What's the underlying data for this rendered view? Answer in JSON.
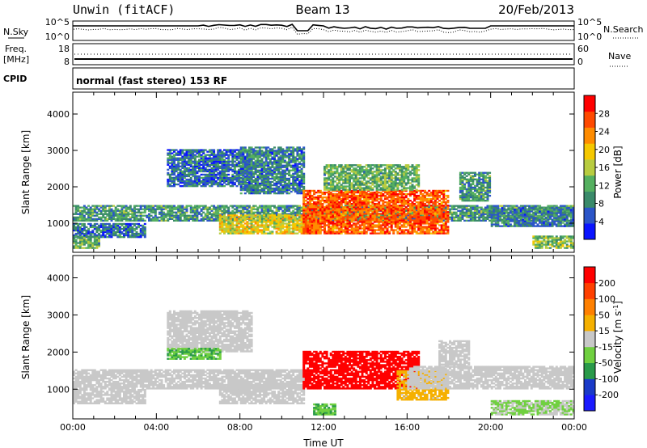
{
  "header": {
    "radar": "Unwin (fitACF)",
    "beam": "Beam 13",
    "date": "20/Feb/2013"
  },
  "noise_panel": {
    "left_label": "N.Sky",
    "left_ticks": [
      "10^5",
      "10^0"
    ],
    "right_ticks": [
      "10^5",
      "10^0"
    ],
    "right_label": "N.Search"
  },
  "freq_panel": {
    "left_label_1": "Freq.",
    "left_label_2": "[MHz]",
    "left_ticks": [
      "18",
      "8"
    ],
    "right_ticks": [
      "60",
      "0"
    ],
    "right_label": "Nave"
  },
  "cpid_panel": {
    "label": "CPID",
    "text": "normal (fast stereo) 153 RF"
  },
  "colors": {
    "power_scale": [
      "#0a14ff",
      "#2b55c8",
      "#3a8a6a",
      "#55b060",
      "#b8cc40",
      "#f5c800",
      "#ff8c00",
      "#ff4a00",
      "#ff0000"
    ],
    "velocity_scale": [
      "#1a1aff",
      "#1a3ac8",
      "#2a9a4a",
      "#70d040",
      "#c8c8c8",
      "#f5b000",
      "#ff8000",
      "#ff4000",
      "#ff0000"
    ]
  },
  "chart_data": [
    {
      "type": "heatmap",
      "name": "power",
      "xlabel": "",
      "ylabel": "Slant Range [km]",
      "ylim": [
        200,
        4600
      ],
      "xlim": [
        0,
        24
      ],
      "yticks": [
        1000,
        2000,
        3000,
        4000
      ],
      "colorbar": {
        "label": "Power [dB]",
        "ticks": [
          "28",
          "24",
          "20",
          "16",
          "12",
          "8",
          "4"
        ],
        "range": [
          0,
          32
        ]
      },
      "regions": [
        {
          "t0": 0.0,
          "t1": 24.0,
          "r0": 1050,
          "r1": 1500,
          "level": 10
        },
        {
          "t0": 0.0,
          "t1": 3.5,
          "r0": 600,
          "r1": 1000,
          "level": 7
        },
        {
          "t0": 0.0,
          "t1": 1.3,
          "r0": 300,
          "r1": 650,
          "level": 12
        },
        {
          "t0": 4.5,
          "t1": 8.5,
          "r0": 2000,
          "r1": 3000,
          "level": 7
        },
        {
          "t0": 8.0,
          "t1": 11.0,
          "r0": 1800,
          "r1": 3100,
          "level": 8
        },
        {
          "t0": 7.0,
          "t1": 11.5,
          "r0": 700,
          "r1": 1200,
          "level": 18
        },
        {
          "t0": 11.0,
          "t1": 18.0,
          "r0": 700,
          "r1": 1900,
          "level": 26
        },
        {
          "t0": 12.0,
          "t1": 16.5,
          "r0": 1900,
          "r1": 2600,
          "level": 12
        },
        {
          "t0": 18.5,
          "t1": 20.0,
          "r0": 1600,
          "r1": 2400,
          "level": 10
        },
        {
          "t0": 20.0,
          "t1": 24.0,
          "r0": 900,
          "r1": 1400,
          "level": 8
        },
        {
          "t0": 22.0,
          "t1": 24.0,
          "r0": 300,
          "r1": 650,
          "level": 14
        }
      ]
    },
    {
      "type": "heatmap",
      "name": "velocity",
      "xlabel": "Time UT",
      "ylabel": "Slant Range [km]",
      "ylim": [
        200,
        4600
      ],
      "xlim": [
        0,
        24
      ],
      "xticks": [
        "00:00",
        "04:00",
        "08:00",
        "12:00",
        "16:00",
        "20:00",
        "00:00"
      ],
      "yticks": [
        1000,
        2000,
        3000,
        4000
      ],
      "colorbar": {
        "label": "Velocity [m s^-1]",
        "ticks": [
          "200",
          "100",
          "50",
          "15",
          "-15",
          "-50",
          "-100",
          "-200"
        ],
        "range": [
          -250,
          250
        ]
      },
      "regions": [
        {
          "t0": 0.0,
          "t1": 11.0,
          "r0": 1000,
          "r1": 1500,
          "level": 0
        },
        {
          "t0": 0.0,
          "t1": 3.5,
          "r0": 600,
          "r1": 1000,
          "level": 0
        },
        {
          "t0": 7.0,
          "t1": 11.0,
          "r0": 600,
          "r1": 1100,
          "level": 0
        },
        {
          "t0": 4.5,
          "t1": 8.5,
          "r0": 2000,
          "r1": 3100,
          "level": 0
        },
        {
          "t0": 4.5,
          "t1": 7.0,
          "r0": 1800,
          "r1": 2100,
          "level": -80
        },
        {
          "t0": 11.0,
          "t1": 16.5,
          "r0": 1000,
          "r1": 2000,
          "level": 230
        },
        {
          "t0": 15.5,
          "t1": 18.0,
          "r0": 700,
          "r1": 1500,
          "level": 40
        },
        {
          "t0": 16.0,
          "t1": 24.0,
          "r0": 1000,
          "r1": 1600,
          "level": 0
        },
        {
          "t0": 17.5,
          "t1": 19.0,
          "r0": 1600,
          "r1": 2300,
          "level": 0
        },
        {
          "t0": 20.0,
          "t1": 24.0,
          "r0": 300,
          "r1": 700,
          "level": -30
        },
        {
          "t0": 11.5,
          "t1": 12.5,
          "r0": 300,
          "r1": 600,
          "level": -80
        }
      ]
    }
  ]
}
